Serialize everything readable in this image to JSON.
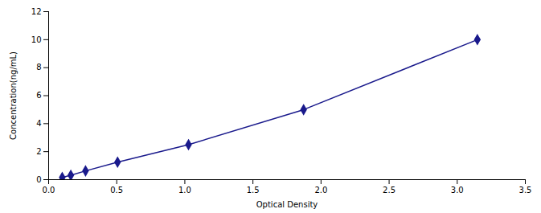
{
  "chart_data": {
    "type": "line",
    "x": [
      0.1,
      0.163,
      0.271,
      0.506,
      1.027,
      1.872,
      3.148
    ],
    "values": [
      0.156,
      0.312,
      0.625,
      1.25,
      2.5,
      5.0,
      10.0
    ],
    "color": "#1a1a8c",
    "marker": "diamond",
    "xlabel": "Optical Density",
    "ylabel": "Concentration(ng/mL)",
    "xlim": [
      0,
      3.5
    ],
    "ylim": [
      0,
      12
    ],
    "xticks": [
      {
        "value": 0,
        "label": "0.0"
      },
      0.5,
      {
        "value": 1.0,
        "label": "1.0"
      },
      1.5,
      {
        "value": 2.0,
        "label": "2.0"
      },
      2.5,
      {
        "value": 3.0,
        "label": "3.0"
      },
      3.5
    ],
    "yticks": [
      0,
      2,
      4,
      6,
      8,
      10,
      12
    ],
    "grid": false
  }
}
